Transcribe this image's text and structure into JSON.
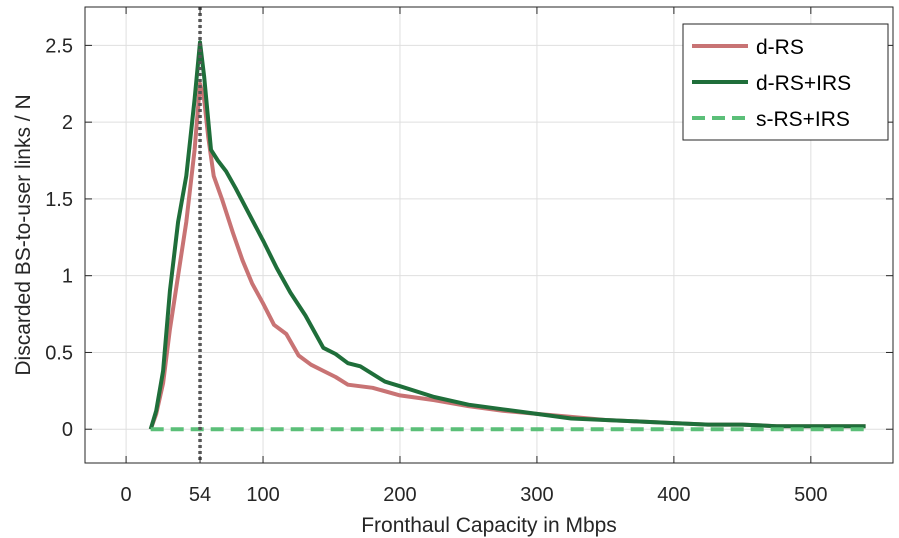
{
  "chart_data": {
    "type": "line",
    "xlabel": "Fronthaul Capacity in Mbps",
    "ylabel": "Discarded BS-to-user links / N",
    "xlim": [
      -30,
      560
    ],
    "ylim": [
      -0.22,
      2.75
    ],
    "x_ticks": [
      0,
      54,
      100,
      200,
      300,
      400,
      500
    ],
    "x_tick_labels": [
      "0",
      "54",
      "100",
      "200",
      "300",
      "400",
      "500"
    ],
    "y_ticks": [
      0,
      0.5,
      1,
      1.5,
      2,
      2.5
    ],
    "y_tick_labels": [
      "0",
      "0.5",
      "1",
      "1.5",
      "2",
      "2.5"
    ],
    "grid": true,
    "legend_position": "top-right",
    "vertical_line": {
      "x": 54,
      "style": "dotted",
      "color": "#555555"
    },
    "series": [
      {
        "name": "d-RS",
        "color": "#c87374",
        "style": "solid",
        "points": [
          [
            18,
            0
          ],
          [
            22,
            0.1
          ],
          [
            27,
            0.3
          ],
          [
            32,
            0.65
          ],
          [
            38,
            1.0
          ],
          [
            44,
            1.35
          ],
          [
            50,
            1.82
          ],
          [
            54,
            2.25
          ],
          [
            57,
            2.15
          ],
          [
            60,
            1.9
          ],
          [
            64,
            1.65
          ],
          [
            70,
            1.5
          ],
          [
            78,
            1.28
          ],
          [
            85,
            1.1
          ],
          [
            92,
            0.95
          ],
          [
            100,
            0.82
          ],
          [
            108,
            0.68
          ],
          [
            117,
            0.62
          ],
          [
            126,
            0.48
          ],
          [
            135,
            0.42
          ],
          [
            144,
            0.38
          ],
          [
            153,
            0.34
          ],
          [
            162,
            0.29
          ],
          [
            180,
            0.27
          ],
          [
            200,
            0.22
          ],
          [
            225,
            0.19
          ],
          [
            250,
            0.15
          ],
          [
            275,
            0.12
          ],
          [
            300,
            0.1
          ],
          [
            325,
            0.08
          ],
          [
            350,
            0.06
          ],
          [
            375,
            0.05
          ],
          [
            400,
            0.04
          ],
          [
            425,
            0.03
          ],
          [
            450,
            0.03
          ],
          [
            475,
            0.02
          ],
          [
            500,
            0.02
          ],
          [
            540,
            0.02
          ]
        ]
      },
      {
        "name": "d-RS+IRS",
        "color": "#1f6e3a",
        "style": "solid",
        "points": [
          [
            18,
            0
          ],
          [
            22,
            0.12
          ],
          [
            27,
            0.38
          ],
          [
            32,
            0.9
          ],
          [
            38,
            1.35
          ],
          [
            44,
            1.65
          ],
          [
            50,
            2.15
          ],
          [
            54,
            2.52
          ],
          [
            57,
            2.3
          ],
          [
            62,
            1.82
          ],
          [
            67,
            1.75
          ],
          [
            73,
            1.68
          ],
          [
            80,
            1.57
          ],
          [
            90,
            1.4
          ],
          [
            100,
            1.23
          ],
          [
            110,
            1.05
          ],
          [
            120,
            0.89
          ],
          [
            131,
            0.74
          ],
          [
            144,
            0.53
          ],
          [
            153,
            0.49
          ],
          [
            162,
            0.43
          ],
          [
            171,
            0.41
          ],
          [
            189,
            0.31
          ],
          [
            200,
            0.28
          ],
          [
            225,
            0.21
          ],
          [
            250,
            0.16
          ],
          [
            275,
            0.13
          ],
          [
            300,
            0.1
          ],
          [
            325,
            0.07
          ],
          [
            350,
            0.06
          ],
          [
            375,
            0.05
          ],
          [
            400,
            0.04
          ],
          [
            425,
            0.03
          ],
          [
            450,
            0.03
          ],
          [
            475,
            0.02
          ],
          [
            500,
            0.02
          ],
          [
            540,
            0.02
          ]
        ]
      },
      {
        "name": "s-RS+IRS",
        "color": "#5bbf78",
        "style": "dashed",
        "points": [
          [
            18,
            0
          ],
          [
            540,
            0
          ]
        ]
      }
    ]
  }
}
